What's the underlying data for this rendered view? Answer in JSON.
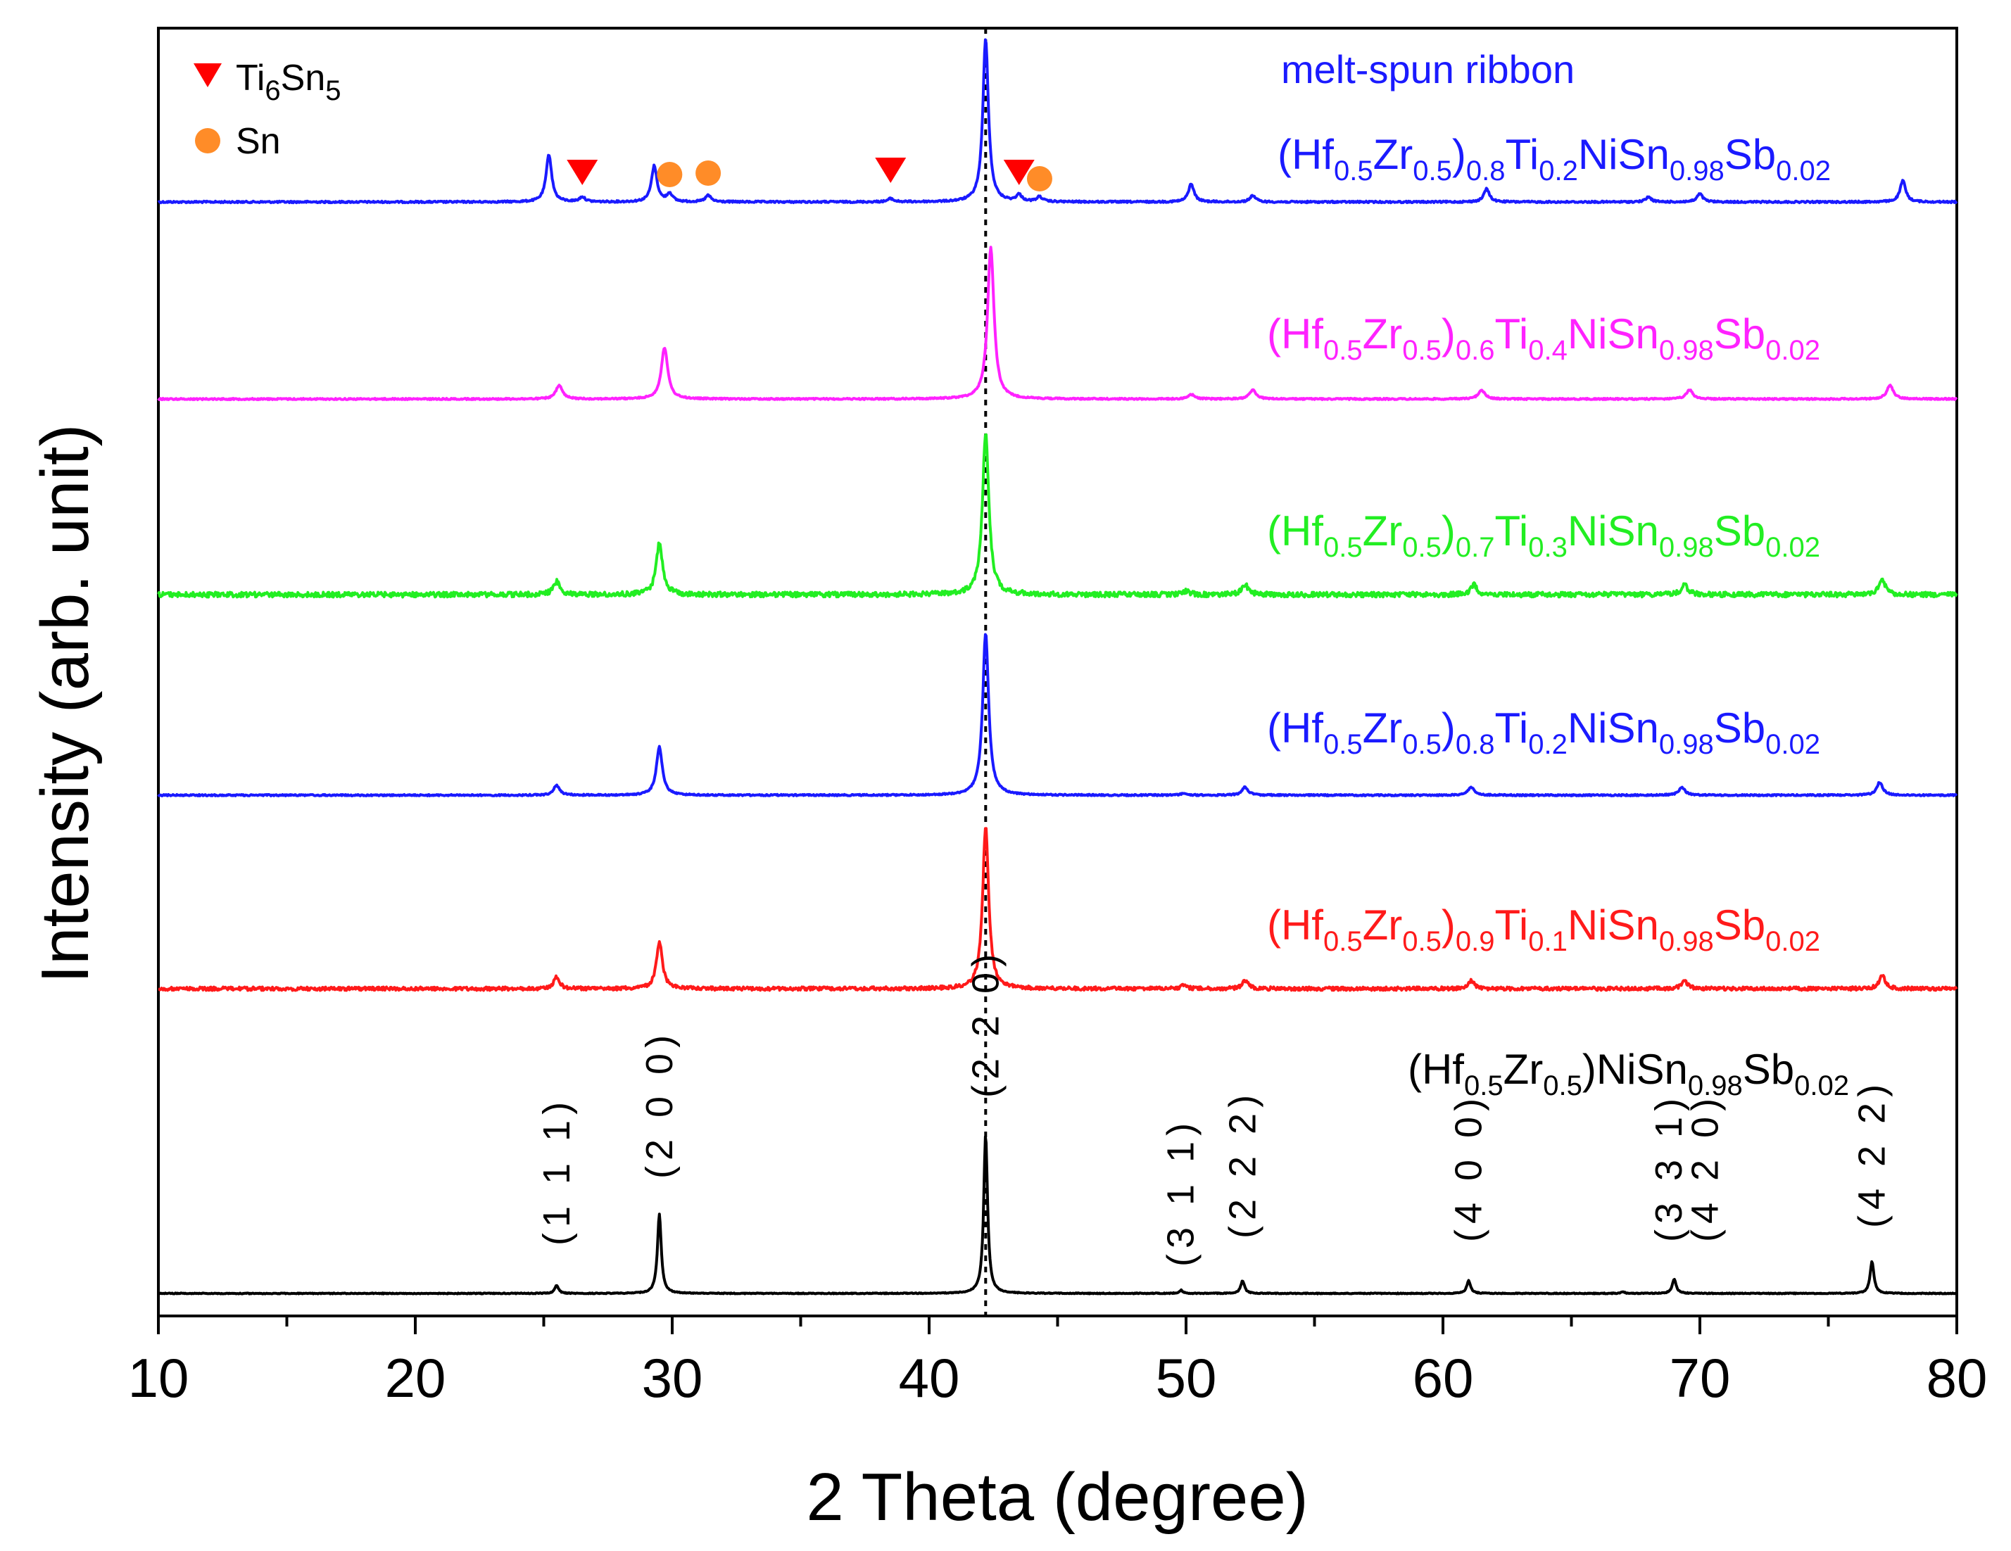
{
  "chart_data": {
    "type": "line",
    "xlabel": "2 Theta (degree)",
    "ylabel": "Intensity (arb. unit)",
    "xlim": [
      10,
      80
    ],
    "x_ticks": [
      10,
      20,
      30,
      40,
      50,
      60,
      70,
      80
    ],
    "reference_line_x": 42.2,
    "grid": false,
    "legend": {
      "placement": "top-left",
      "entries": [
        {
          "marker": "triangle-down",
          "color": "#ff0000",
          "label": "Ti",
          "sub1": "6",
          "label2": "Sn",
          "sub2": "5"
        },
        {
          "marker": "circle",
          "color": "#ff8c28",
          "label": "Sn",
          "sub1": "",
          "label2": "",
          "sub2": ""
        }
      ]
    },
    "ribbon_title": "melt-spun ribbon",
    "series": [
      {
        "id": "ribbon",
        "color": "#1a1aff",
        "label_parts": [
          {
            "t": "(Hf",
            "s": false
          },
          {
            "t": "0.5",
            "s": true
          },
          {
            "t": "Zr",
            "s": false
          },
          {
            "t": "0.5",
            "s": true
          },
          {
            "t": ")",
            "s": false
          },
          {
            "t": "0.8",
            "s": true
          },
          {
            "t": "Ti",
            "s": false
          },
          {
            "t": "0.2",
            "s": true
          },
          {
            "t": "NiSn",
            "s": false
          },
          {
            "t": "0.98",
            "s": true
          },
          {
            "t": "Sb",
            "s": false
          },
          {
            "t": "0.02",
            "s": true
          }
        ],
        "peaks": [
          {
            "x": 25.2,
            "h": 0.29
          },
          {
            "x": 26.5,
            "h": 0.03
          },
          {
            "x": 29.3,
            "h": 0.22
          },
          {
            "x": 29.9,
            "h": 0.05
          },
          {
            "x": 31.4,
            "h": 0.04
          },
          {
            "x": 38.5,
            "h": 0.02
          },
          {
            "x": 42.2,
            "h": 1.0
          },
          {
            "x": 43.5,
            "h": 0.04
          },
          {
            "x": 44.3,
            "h": 0.03
          },
          {
            "x": 50.2,
            "h": 0.11
          },
          {
            "x": 52.6,
            "h": 0.04
          },
          {
            "x": 61.7,
            "h": 0.08
          },
          {
            "x": 68.0,
            "h": 0.03
          },
          {
            "x": 70.0,
            "h": 0.05
          },
          {
            "x": 77.9,
            "h": 0.13
          }
        ],
        "impurity_markers": [
          {
            "type": "triangle",
            "x": 26.5
          },
          {
            "type": "circle",
            "x": 29.9
          },
          {
            "type": "circle",
            "x": 31.4
          },
          {
            "type": "triangle",
            "x": 38.5
          },
          {
            "type": "triangle",
            "x": 43.5
          },
          {
            "type": "circle",
            "x": 44.3
          }
        ]
      },
      {
        "id": "x04",
        "color": "#ff22ff",
        "label_parts": [
          {
            "t": "(Hf",
            "s": false
          },
          {
            "t": "0.5",
            "s": true
          },
          {
            "t": "Zr",
            "s": false
          },
          {
            "t": "0.5",
            "s": true
          },
          {
            "t": ")",
            "s": false
          },
          {
            "t": "0.6",
            "s": true
          },
          {
            "t": "Ti",
            "s": false
          },
          {
            "t": "0.4",
            "s": true
          },
          {
            "t": "NiSn",
            "s": false
          },
          {
            "t": "0.98",
            "s": true
          },
          {
            "t": "Sb",
            "s": false
          },
          {
            "t": "0.02",
            "s": true
          }
        ],
        "peaks": [
          {
            "x": 25.6,
            "h": 0.09
          },
          {
            "x": 29.7,
            "h": 0.34
          },
          {
            "x": 42.4,
            "h": 1.0
          },
          {
            "x": 50.2,
            "h": 0.03
          },
          {
            "x": 52.6,
            "h": 0.06
          },
          {
            "x": 61.5,
            "h": 0.06
          },
          {
            "x": 69.6,
            "h": 0.06
          },
          {
            "x": 77.4,
            "h": 0.09
          }
        ]
      },
      {
        "id": "x03",
        "color": "#22ee22",
        "label_parts": [
          {
            "t": "(Hf",
            "s": false
          },
          {
            "t": "0.5",
            "s": true
          },
          {
            "t": "Zr",
            "s": false
          },
          {
            "t": "0.5",
            "s": true
          },
          {
            "t": ")",
            "s": false
          },
          {
            "t": "0.7",
            "s": true
          },
          {
            "t": "Ti",
            "s": false
          },
          {
            "t": "0.3",
            "s": true
          },
          {
            "t": "NiSn",
            "s": false
          },
          {
            "t": "0.98",
            "s": true
          },
          {
            "t": "Sb",
            "s": false
          },
          {
            "t": "0.02",
            "s": true
          }
        ],
        "peaks": [
          {
            "x": 25.5,
            "h": 0.08
          },
          {
            "x": 29.5,
            "h": 0.32
          },
          {
            "x": 42.2,
            "h": 1.0
          },
          {
            "x": 50.0,
            "h": 0.02
          },
          {
            "x": 52.3,
            "h": 0.06
          },
          {
            "x": 61.2,
            "h": 0.06
          },
          {
            "x": 69.4,
            "h": 0.06
          },
          {
            "x": 77.1,
            "h": 0.09
          }
        ]
      },
      {
        "id": "x02",
        "color": "#1a1aff",
        "label_parts": [
          {
            "t": "(Hf",
            "s": false
          },
          {
            "t": "0.5",
            "s": true
          },
          {
            "t": "Zr",
            "s": false
          },
          {
            "t": "0.5",
            "s": true
          },
          {
            "t": ")",
            "s": false
          },
          {
            "t": "0.8",
            "s": true
          },
          {
            "t": "Ti",
            "s": false
          },
          {
            "t": "0.2",
            "s": true
          },
          {
            "t": "NiSn",
            "s": false
          },
          {
            "t": "0.98",
            "s": true
          },
          {
            "t": "Sb",
            "s": false
          },
          {
            "t": "0.02",
            "s": true
          }
        ],
        "peaks": [
          {
            "x": 25.5,
            "h": 0.06
          },
          {
            "x": 29.5,
            "h": 0.3
          },
          {
            "x": 42.2,
            "h": 1.0
          },
          {
            "x": 49.9,
            "h": 0.01
          },
          {
            "x": 52.3,
            "h": 0.05
          },
          {
            "x": 61.1,
            "h": 0.05
          },
          {
            "x": 69.3,
            "h": 0.05
          },
          {
            "x": 77.0,
            "h": 0.08
          }
        ]
      },
      {
        "id": "x01",
        "color": "#ff1a1a",
        "label_parts": [
          {
            "t": "(Hf",
            "s": false
          },
          {
            "t": "0.5",
            "s": true
          },
          {
            "t": "Zr",
            "s": false
          },
          {
            "t": "0.5",
            "s": true
          },
          {
            "t": ")",
            "s": false
          },
          {
            "t": "0.9",
            "s": true
          },
          {
            "t": "Ti",
            "s": false
          },
          {
            "t": "0.1",
            "s": true
          },
          {
            "t": "NiSn",
            "s": false
          },
          {
            "t": "0.98",
            "s": true
          },
          {
            "t": "Sb",
            "s": false
          },
          {
            "t": "0.02",
            "s": true
          }
        ],
        "peaks": [
          {
            "x": 25.5,
            "h": 0.07
          },
          {
            "x": 29.5,
            "h": 0.29
          },
          {
            "x": 42.2,
            "h": 1.0
          },
          {
            "x": 49.9,
            "h": 0.02
          },
          {
            "x": 52.3,
            "h": 0.05
          },
          {
            "x": 61.1,
            "h": 0.05
          },
          {
            "x": 69.4,
            "h": 0.05
          },
          {
            "x": 77.1,
            "h": 0.08
          }
        ]
      },
      {
        "id": "ref",
        "color": "#000000",
        "label_parts": [
          {
            "t": "(Hf",
            "s": false
          },
          {
            "t": "0.5",
            "s": true
          },
          {
            "t": "Zr",
            "s": false
          },
          {
            "t": "0.5",
            "s": true
          },
          {
            "t": ")NiSn",
            "s": false
          },
          {
            "t": "0.98",
            "s": true
          },
          {
            "t": "Sb",
            "s": false
          },
          {
            "t": "0.02",
            "s": true
          }
        ],
        "peaks": [
          {
            "x": 25.5,
            "h": 0.05
          },
          {
            "x": 29.5,
            "h": 0.5
          },
          {
            "x": 42.2,
            "h": 1.0
          },
          {
            "x": 49.8,
            "h": 0.02
          },
          {
            "x": 52.2,
            "h": 0.08
          },
          {
            "x": 61.0,
            "h": 0.08
          },
          {
            "x": 67.0,
            "h": 0.01
          },
          {
            "x": 69.0,
            "h": 0.09
          },
          {
            "x": 76.7,
            "h": 0.2
          }
        ],
        "hkl_labels": [
          {
            "x": 25.5,
            "text": "(1 1 1)"
          },
          {
            "x": 29.5,
            "text": "(2 0 0)"
          },
          {
            "x": 42.2,
            "text": "(2 2 0)"
          },
          {
            "x": 49.8,
            "text": "(3 1 1)"
          },
          {
            "x": 52.2,
            "text": "(2 2 2)"
          },
          {
            "x": 61.0,
            "text": "(4 0 0)"
          },
          {
            "x": 68.8,
            "text": "(3 3 1)"
          },
          {
            "x": 70.2,
            "text": "(4 2 0)"
          },
          {
            "x": 76.7,
            "text": "(4 2 2)"
          }
        ]
      }
    ]
  }
}
